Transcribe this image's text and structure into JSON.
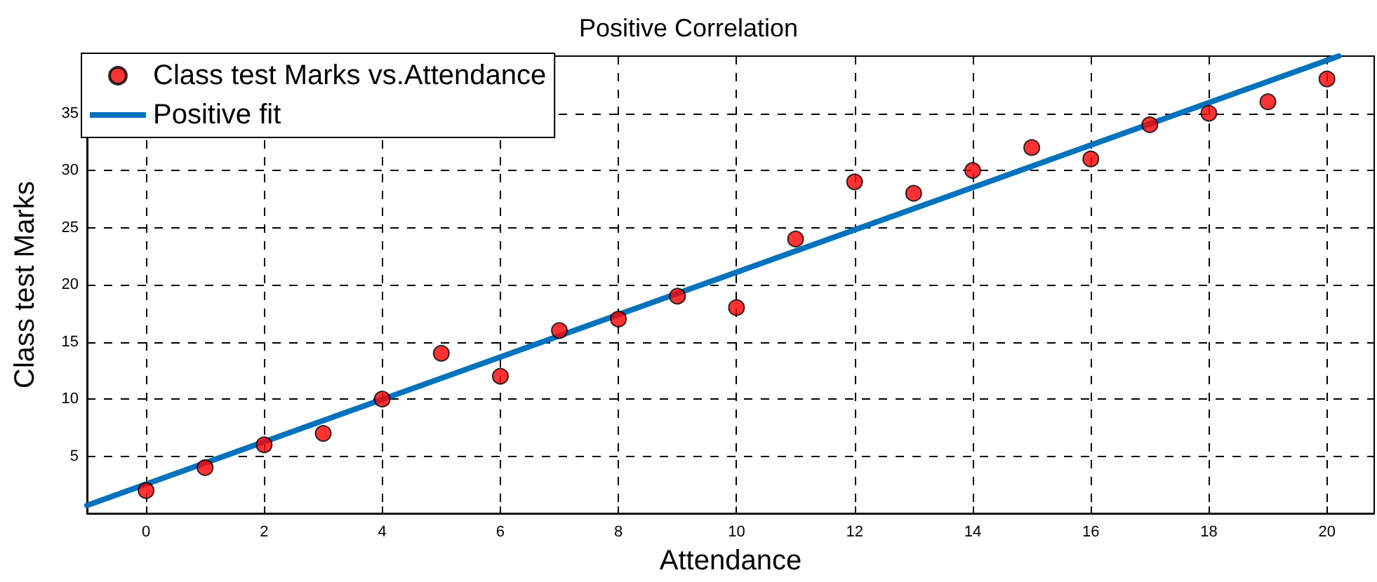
{
  "chart_data": {
    "type": "scatter",
    "title": "Positive Correlation",
    "xlabel": "Attendance",
    "ylabel": "Class test Marks",
    "x": [
      0,
      1,
      2,
      3,
      4,
      5,
      6,
      7,
      8,
      9,
      10,
      11,
      12,
      13,
      14,
      15,
      16,
      17,
      18,
      19,
      20
    ],
    "series": [
      {
        "name": "Class test Marks vs.Attendance",
        "color": "#ff0000",
        "marker": "circle",
        "values": [
          2,
          4,
          6,
          7,
          10,
          14,
          12,
          16,
          17,
          19,
          18,
          24,
          29,
          28,
          30,
          32,
          31,
          34,
          35,
          36,
          38
        ]
      },
      {
        "name": "Positive fit",
        "type": "line",
        "color": "#0072bd",
        "marker": "none",
        "line_style": "solid",
        "x": [
          -1,
          20.2
        ],
        "values": [
          0.7,
          40
        ]
      }
    ],
    "xlim": [
      -1,
      20.8
    ],
    "ylim": [
      0,
      40
    ],
    "xticks": [
      0,
      2,
      4,
      6,
      8,
      10,
      12,
      14,
      16,
      18,
      20
    ],
    "yticks": [
      5,
      10,
      15,
      20,
      25,
      30,
      35
    ],
    "grid": true,
    "legend": "top left"
  }
}
